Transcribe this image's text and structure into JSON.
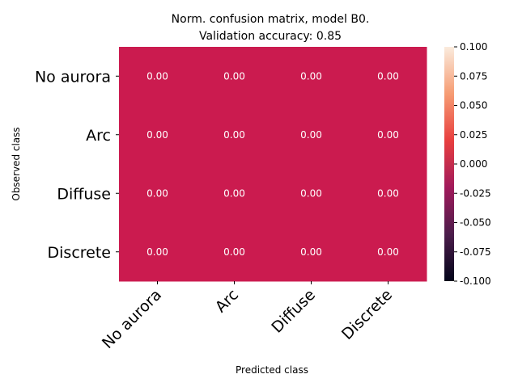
{
  "chart_data": {
    "type": "heatmap",
    "title_line1": "Norm. confusion matrix, model B0.",
    "title_line2": "Validation accuracy: 0.85",
    "xlabel": "Predicted class",
    "ylabel": "Observed class",
    "x_categories": [
      "No aurora",
      "Arc",
      "Diffuse",
      "Discrete"
    ],
    "y_categories": [
      "No aurora",
      "Arc",
      "Diffuse",
      "Discrete"
    ],
    "values": [
      [
        0.0,
        0.0,
        0.0,
        0.0
      ],
      [
        0.0,
        0.0,
        0.0,
        0.0
      ],
      [
        0.0,
        0.0,
        0.0,
        0.0
      ],
      [
        0.0,
        0.0,
        0.0,
        0.0
      ]
    ],
    "cell_labels": [
      [
        "0.00",
        "0.00",
        "0.00",
        "0.00"
      ],
      [
        "0.00",
        "0.00",
        "0.00",
        "0.00"
      ],
      [
        "0.00",
        "0.00",
        "0.00",
        "0.00"
      ],
      [
        "0.00",
        "0.00",
        "0.00",
        "0.00"
      ]
    ],
    "colorbar": {
      "range": [
        -0.1,
        0.1
      ],
      "ticks": [
        "0.100",
        "0.075",
        "0.050",
        "0.025",
        "0.000",
        "-0.025",
        "-0.050",
        "-0.075",
        "-0.100"
      ],
      "colors": [
        "#03051a",
        "#4c1d4b",
        "#a11a5b",
        "#e83f3f",
        "#f69c73",
        "#faebdd"
      ]
    },
    "cell_color": "#cb1b4f",
    "cell_text_color": "#ffffff",
    "grid": false
  }
}
